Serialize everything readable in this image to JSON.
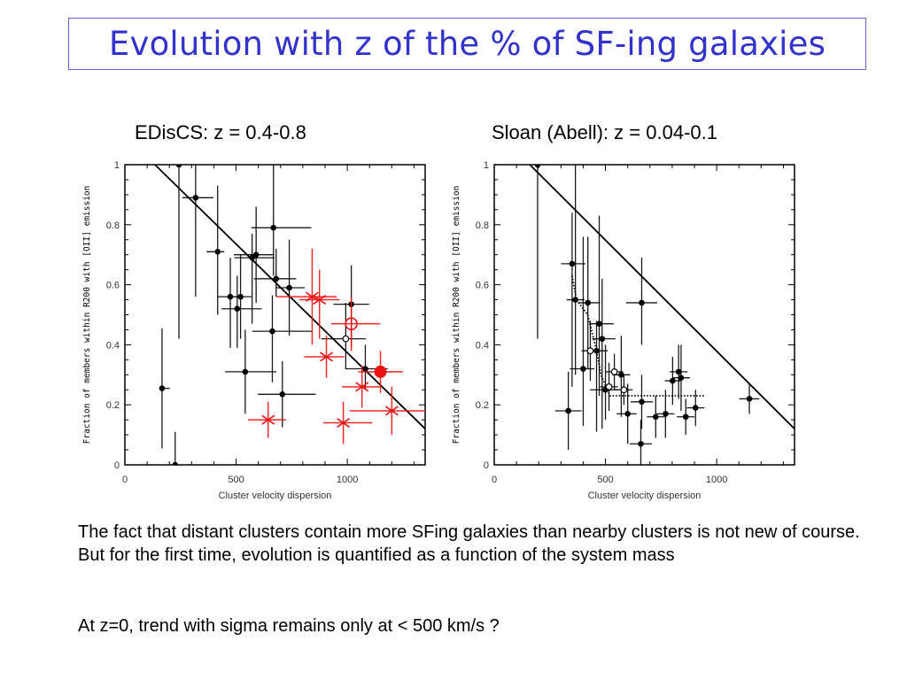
{
  "slide": {
    "title": "Evolution with z of the % of SF-ing galaxies",
    "title_color": "#3333cc",
    "paragraphs": [
      "The fact that distant clusters contain more SFing galaxies than nearby clusters is not new of course. But for the first time, evolution is quantified as a function of the system mass",
      "At z=0, trend with sigma remains only at < 500 km/s ?"
    ]
  },
  "chart_data": [
    {
      "type": "scatter",
      "title": "EDisCS: z = 0.4-0.8",
      "xlabel": "Cluster velocity dispersion",
      "ylabel": "Fraction of members within R200 with [OII] emission",
      "xlim": [
        0,
        1350
      ],
      "ylim": [
        0,
        1
      ],
      "xticks": [
        0,
        500,
        1000
      ],
      "xtick_labels": [
        "0",
        "500",
        "1000"
      ],
      "yticks": [
        0,
        0.2,
        0.4,
        0.6,
        0.8,
        1
      ],
      "ytick_labels": [
        "0",
        "0.2",
        "0.4",
        "0.6",
        "0.8",
        "1"
      ],
      "grid": false,
      "fit_line": {
        "x": [
          135,
          1350
        ],
        "y": [
          1.0,
          0.12
        ],
        "color": "#000000"
      },
      "series": [
        {
          "name": "EDisCS clusters",
          "marker": "filled-circle",
          "color": "#000000",
          "points": [
            {
              "x": 243,
              "y": 1.0,
              "xerr": [
                0,
                0
              ],
              "yerr": [
                0.58,
                0
              ]
            },
            {
              "x": 318,
              "y": 0.89,
              "xerr": [
                60,
                80
              ],
              "yerr": [
                0.33,
                0.11
              ]
            },
            {
              "x": 417,
              "y": 0.71,
              "xerr": [
                50,
                30
              ],
              "yerr": [
                0.21,
                0.22
              ]
            },
            {
              "x": 474,
              "y": 0.56,
              "xerr": [
                60,
                50
              ],
              "yerr": [
                0.17,
                0.13
              ]
            },
            {
              "x": 505,
              "y": 0.52,
              "xerr": [
                70,
                110
              ],
              "yerr": [
                0.13,
                0.11
              ]
            },
            {
              "x": 520,
              "y": 0.56,
              "xerr": [
                60,
                50
              ],
              "yerr": [
                0.14,
                0.14
              ]
            },
            {
              "x": 572,
              "y": 0.69,
              "xerr": [
                80,
                100
              ],
              "yerr": [
                0.22,
                0.08
              ]
            },
            {
              "x": 590,
              "y": 0.7,
              "xerr": [
                100,
                80
              ],
              "yerr": [
                0.16,
                0.16
              ]
            },
            {
              "x": 668,
              "y": 0.79,
              "xerr": [
                100,
                170
              ],
              "yerr": [
                0.16,
                0.21
              ]
            },
            {
              "x": 680,
              "y": 0.62,
              "xerr": [
                100,
                90
              ],
              "yerr": [
                0.06,
                0.1
              ]
            },
            {
              "x": 739,
              "y": 0.59,
              "xerr": [
                60,
                70
              ],
              "yerr": [
                0.16,
                0.16
              ]
            },
            {
              "x": 663,
              "y": 0.445,
              "xerr": [
                90,
                180
              ],
              "yerr": [
                0.17,
                0.12
              ]
            },
            {
              "x": 541,
              "y": 0.31,
              "xerr": [
                90,
                140
              ],
              "yerr": [
                0.14,
                0.14
              ]
            },
            {
              "x": 708,
              "y": 0.235,
              "xerr": [
                110,
                150
              ],
              "yerr": [
                0.11,
                0.11
              ]
            },
            {
              "x": 1018,
              "y": 0.535,
              "xerr": [
                80,
                80
              ],
              "yerr": [
                0.14,
                0.13
              ]
            },
            {
              "x": 1081,
              "y": 0.32,
              "xerr": [
                90,
                100
              ],
              "yerr": [
                0.07,
                0.08
              ]
            },
            {
              "x": 167,
              "y": 0.255,
              "xerr": [
                0,
                35
              ],
              "yerr": [
                0.2,
                0.2
              ]
            },
            {
              "x": 226,
              "y": 0.0,
              "xerr": [
                0,
                0
              ],
              "yerr": [
                0,
                0.11
              ]
            }
          ]
        },
        {
          "name": "EDisCS (open)",
          "marker": "open-circle",
          "color": "#000000",
          "points": [
            {
              "x": 993,
              "y": 0.42,
              "xerr": [
                110,
                90
              ],
              "yerr": [
                0.1,
                0.12
              ]
            }
          ]
        },
        {
          "name": "Other high-z clusters",
          "marker": "asterisk",
          "color": "#ee1111",
          "points": [
            {
              "x": 842,
              "y": 0.56,
              "xerr": [
                160,
                110
              ],
              "yerr": [
                0.16,
                0.16
              ]
            },
            {
              "x": 875,
              "y": 0.55,
              "xerr": [
                90,
                90
              ],
              "yerr": [
                0.13,
                0.1
              ]
            },
            {
              "x": 906,
              "y": 0.36,
              "xerr": [
                100,
                80
              ],
              "yerr": [
                0.07,
                0.07
              ]
            },
            {
              "x": 1066,
              "y": 0.26,
              "xerr": [
                90,
                80
              ],
              "yerr": [
                0.07,
                0.07
              ]
            },
            {
              "x": 644,
              "y": 0.15,
              "xerr": [
                90,
                80
              ],
              "yerr": [
                0.06,
                0.06
              ]
            },
            {
              "x": 982,
              "y": 0.14,
              "xerr": [
                90,
                130
              ],
              "yerr": [
                0.07,
                0.07
              ]
            },
            {
              "x": 1200,
              "y": 0.18,
              "xerr": [
                190,
                150
              ],
              "yerr": [
                0.08,
                0.08
              ],
              "arrow_right": true
            }
          ]
        },
        {
          "name": "Other high-z (open red)",
          "marker": "open-circle-large",
          "color": "#ee1111",
          "points": [
            {
              "x": 1018,
              "y": 0.47,
              "xerr": [
                90,
                130
              ],
              "yerr": [
                0.09,
                0.09
              ]
            }
          ]
        },
        {
          "name": "Other high-z (filled red)",
          "marker": "filled-circle-large",
          "color": "#ee1111",
          "points": [
            {
              "x": 1149,
              "y": 0.31,
              "xerr": [
                100,
                100
              ],
              "yerr": [
                0.07,
                0.07
              ]
            }
          ]
        }
      ]
    },
    {
      "type": "scatter",
      "title": "Sloan (Abell): z = 0.04-0.1",
      "xlabel": "Cluster velocity dispersion",
      "ylabel": "Fraction of members within R200 with [OII] emission",
      "xlim": [
        0,
        1350
      ],
      "ylim": [
        0,
        1
      ],
      "xticks": [
        0,
        500,
        1000
      ],
      "xtick_labels": [
        "0",
        "500",
        "1000"
      ],
      "yticks": [
        0,
        0.2,
        0.4,
        0.6,
        0.8,
        1
      ],
      "ytick_labels": [
        "0",
        "0.2",
        "0.4",
        "0.6",
        "0.8",
        "1"
      ],
      "grid": false,
      "fit_line": {
        "x": [
          160,
          1350
        ],
        "y": [
          1.0,
          0.12
        ],
        "color": "#000000"
      },
      "median_line": {
        "x": [
          350,
          370,
          420,
          460,
          480,
          520,
          950
        ],
        "y": [
          0.63,
          0.55,
          0.5,
          0.38,
          0.3,
          0.23,
          0.23
        ],
        "style": "dotted"
      },
      "series": [
        {
          "name": "Sloan clusters",
          "marker": "filled-circle",
          "color": "#000000",
          "points": [
            {
              "x": 195,
              "y": 1.0,
              "xerr": [
                0,
                0
              ],
              "yerr": [
                0.58,
                0
              ]
            },
            {
              "x": 350,
              "y": 0.67,
              "xerr": [
                50,
                60
              ],
              "yerr": [
                0.41,
                0.17
              ]
            },
            {
              "x": 365,
              "y": 0.55,
              "xerr": [
                40,
                40
              ],
              "yerr": [
                0.25,
                0.55
              ]
            },
            {
              "x": 421,
              "y": 0.54,
              "xerr": [
                45,
                55
              ],
              "yerr": [
                0.22,
                0.22
              ]
            },
            {
              "x": 472,
              "y": 0.47,
              "xerr": [
                45,
                65
              ],
              "yerr": [
                0.24,
                0.36
              ]
            },
            {
              "x": 485,
              "y": 0.42,
              "xerr": [
                45,
                60
              ],
              "yerr": [
                0.3,
                0.2
              ]
            },
            {
              "x": 460,
              "y": 0.38,
              "xerr": [
                40,
                50
              ],
              "yerr": [
                0.27,
                0.1
              ]
            },
            {
              "x": 400,
              "y": 0.32,
              "xerr": [
                60,
                50
              ],
              "yerr": [
                0.19,
                0.44
              ]
            },
            {
              "x": 571,
              "y": 0.3,
              "xerr": [
                40,
                40
              ],
              "yerr": [
                0.14,
                0.13
              ]
            },
            {
              "x": 500,
              "y": 0.25,
              "xerr": [
                70,
                60
              ],
              "yerr": [
                0.1,
                0.15
              ]
            },
            {
              "x": 333,
              "y": 0.18,
              "xerr": [
                60,
                60
              ],
              "yerr": [
                0.13,
                0.13
              ]
            },
            {
              "x": 600,
              "y": 0.17,
              "xerr": [
                50,
                40
              ],
              "yerr": [
                0.1,
                0.1
              ]
            },
            {
              "x": 663,
              "y": 0.54,
              "xerr": [
                70,
                70
              ],
              "yerr": [
                0.14,
                0.15
              ]
            },
            {
              "x": 663,
              "y": 0.21,
              "xerr": [
                50,
                50
              ],
              "yerr": [
                0.09,
                0.09
              ]
            },
            {
              "x": 659,
              "y": 0.07,
              "xerr": [
                50,
                50
              ],
              "yerr": [
                0.07,
                0.08
              ]
            },
            {
              "x": 726,
              "y": 0.16,
              "xerr": [
                40,
                40
              ],
              "yerr": [
                0.07,
                0.07
              ]
            },
            {
              "x": 770,
              "y": 0.17,
              "xerr": [
                40,
                40
              ],
              "yerr": [
                0.08,
                0.08
              ]
            },
            {
              "x": 802,
              "y": 0.28,
              "xerr": [
                35,
                35
              ],
              "yerr": [
                0.08,
                0.08
              ]
            },
            {
              "x": 829,
              "y": 0.31,
              "xerr": [
                40,
                40
              ],
              "yerr": [
                0.09,
                0.09
              ]
            },
            {
              "x": 840,
              "y": 0.29,
              "xerr": [
                40,
                40
              ],
              "yerr": [
                0.11,
                0.11
              ]
            },
            {
              "x": 861,
              "y": 0.16,
              "xerr": [
                40,
                40
              ],
              "yerr": [
                0.06,
                0.06
              ]
            },
            {
              "x": 905,
              "y": 0.19,
              "xerr": [
                40,
                40
              ],
              "yerr": [
                0.06,
                0.06
              ]
            },
            {
              "x": 1147,
              "y": 0.22,
              "xerr": [
                45,
                45
              ],
              "yerr": [
                0.05,
                0.05
              ]
            }
          ]
        },
        {
          "name": "Sloan (open)",
          "marker": "open-circle",
          "color": "#000000",
          "points": [
            {
              "x": 432,
              "y": 0.38,
              "xerr": [
                40,
                40
              ],
              "yerr": [
                0.1,
                0.1
              ]
            },
            {
              "x": 540,
              "y": 0.31,
              "xerr": [
                40,
                40
              ],
              "yerr": [
                0.06,
                0.06
              ]
            },
            {
              "x": 516,
              "y": 0.26,
              "xerr": [
                40,
                40
              ],
              "yerr": [
                0.08,
                0.08
              ]
            },
            {
              "x": 583,
              "y": 0.25,
              "xerr": [
                40,
                40
              ],
              "yerr": [
                0.05,
                0.05
              ]
            }
          ]
        }
      ]
    }
  ]
}
